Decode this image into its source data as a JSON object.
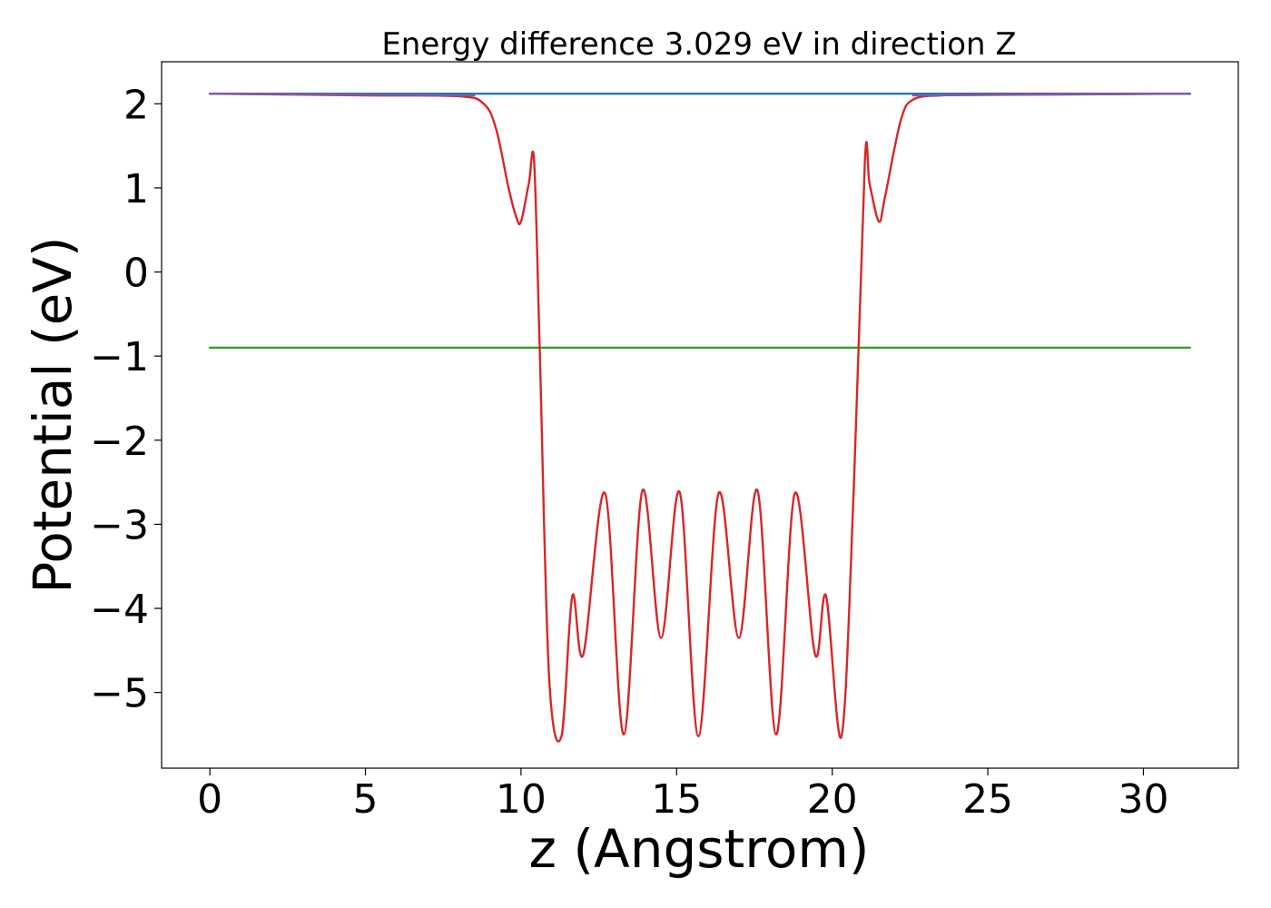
{
  "chart_data": {
    "type": "line",
    "title": "Energy difference 3.029 eV in direction Z",
    "xlabel": "z (Angstrom)",
    "ylabel": "Potential (eV)",
    "xlim": [
      -1.55,
      33.05
    ],
    "ylim": [
      -5.9,
      2.5
    ],
    "x_ticks": [
      0,
      5,
      10,
      15,
      20,
      25,
      30
    ],
    "x_tick_labels": [
      "0",
      "5",
      "10",
      "15",
      "20",
      "25",
      "30"
    ],
    "y_ticks": [
      2,
      1,
      0,
      -1,
      -2,
      -3,
      -4,
      -5
    ],
    "y_tick_labels": [
      "2",
      "1",
      "0",
      "−1",
      "−2",
      "−3",
      "−4",
      "−5"
    ],
    "grid": false,
    "legend": "none",
    "series": [
      {
        "color": "#1f77b4",
        "x": [
          0,
          31.5
        ],
        "y": [
          2.12,
          2.12
        ]
      },
      {
        "color": "#2ca02c",
        "x": [
          0,
          31.5
        ],
        "y": [
          -0.9,
          -0.9
        ]
      },
      {
        "color": "#d62728",
        "x": [
          0,
          5,
          8.0,
          8.8,
          9.2,
          9.6,
          9.85,
          10.0,
          10.25,
          10.42,
          10.6,
          10.9,
          11.3,
          11.65,
          12.0,
          12.7,
          13.3,
          13.9,
          14.5,
          15.1,
          15.7,
          16.35,
          17.0,
          17.6,
          18.2,
          18.8,
          19.45,
          19.8,
          20.3,
          20.7,
          21.05,
          21.2,
          21.5,
          21.7,
          22.2,
          22.6,
          23.5,
          25,
          31.5
        ],
        "y": [
          2.12,
          2.1,
          2.09,
          2.0,
          1.7,
          1.0,
          0.65,
          0.6,
          1.05,
          1.32,
          -0.9,
          -4.8,
          -5.52,
          -3.85,
          -4.55,
          -2.63,
          -5.5,
          -2.6,
          -4.35,
          -2.62,
          -5.52,
          -2.63,
          -4.35,
          -2.6,
          -5.5,
          -2.63,
          -4.55,
          -3.85,
          -5.52,
          -2.5,
          1.32,
          1.05,
          0.6,
          0.9,
          1.8,
          2.05,
          2.1,
          2.11,
          2.12
        ]
      },
      {
        "color": "#7b5fa8",
        "x": [
          0,
          8.5
        ],
        "y": [
          2.12,
          2.1
        ]
      },
      {
        "color": "#7b5fa8",
        "x": [
          22.6,
          31.5
        ],
        "y": [
          2.1,
          2.12
        ]
      }
    ]
  }
}
